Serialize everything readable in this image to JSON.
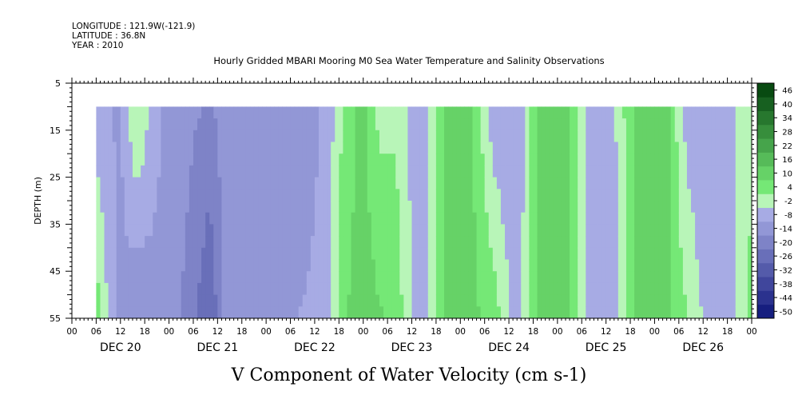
{
  "header": {
    "longitude": "LONGITUDE : 121.9W(-121.9)",
    "latitude": "LATITUDE : 36.8N",
    "year": "YEAR : 2010"
  },
  "colors": {
    "strong_negative": "#1e3ca8",
    "negative": "#8ea3f0",
    "near_zero": "#b6f2b6",
    "positive": "#3ee04f",
    "strong_positive": "#0a5a12",
    "background": "#ffffff"
  },
  "chart_data": {
    "type": "heatmap",
    "title": "Hourly Gridded MBARI Mooring M0 Sea Water Temperature and Salinity Observations",
    "xlabel": "",
    "ylabel": "DEPTH (m)",
    "caption": "V Component of Water Velocity (cm s-1)",
    "x_unit": "hours since Dec 20 2010 00:00",
    "xlim": [
      0,
      168
    ],
    "ylim": [
      5,
      55
    ],
    "y_inverted": true,
    "depth_data_range": [
      10,
      55
    ],
    "time_data_range": [
      6,
      168
    ],
    "ytick_values": [
      5,
      15,
      25,
      35,
      45,
      55
    ],
    "ytick_labels": [
      "5",
      "15",
      "25",
      "35",
      "45",
      "55"
    ],
    "hour_tick_labels": [
      "00",
      "06",
      "12",
      "18",
      "00",
      "06",
      "12",
      "18",
      "00",
      "06",
      "12",
      "18",
      "00",
      "06",
      "12",
      "18",
      "00",
      "06",
      "12",
      "18",
      "00",
      "06",
      "12",
      "18",
      "00",
      "06",
      "12",
      "18",
      "00"
    ],
    "day_labels": [
      "DEC 20",
      "DEC 21",
      "DEC 22",
      "DEC 23",
      "DEC 24",
      "DEC 25",
      "DEC 26"
    ],
    "colorbar": {
      "levels": [
        -50,
        -44,
        -38,
        -32,
        -26,
        -20,
        -14,
        -8,
        -2,
        4,
        10,
        16,
        22,
        28,
        34,
        40,
        46
      ],
      "labels": [
        "-50",
        "-44",
        "-38",
        "-32",
        "-26",
        "-20",
        "-14",
        "-8",
        "-2",
        "4",
        "10",
        "16",
        "22",
        "28",
        "34",
        "40",
        "46"
      ],
      "orientation": "vertical"
    },
    "v_velocity_shallow_10m": [
      {
        "t": 6,
        "v": -6
      },
      {
        "t": 12,
        "v": -9
      },
      {
        "t": 16,
        "v": 5
      },
      {
        "t": 22,
        "v": -8
      },
      {
        "t": 28,
        "v": -12
      },
      {
        "t": 34,
        "v": -15
      },
      {
        "t": 40,
        "v": -9
      },
      {
        "t": 46,
        "v": -8
      },
      {
        "t": 52,
        "v": -10
      },
      {
        "t": 58,
        "v": -12
      },
      {
        "t": 64,
        "v": -4
      },
      {
        "t": 68,
        "v": 8
      },
      {
        "t": 72,
        "v": 12
      },
      {
        "t": 76,
        "v": 2
      },
      {
        "t": 80,
        "v": 3
      },
      {
        "t": 86,
        "v": -8
      },
      {
        "t": 92,
        "v": 11
      },
      {
        "t": 98,
        "v": 14
      },
      {
        "t": 104,
        "v": -6
      },
      {
        "t": 110,
        "v": -8
      },
      {
        "t": 116,
        "v": 14
      },
      {
        "t": 122,
        "v": 15
      },
      {
        "t": 128,
        "v": -6
      },
      {
        "t": 134,
        "v": -3
      },
      {
        "t": 140,
        "v": 14
      },
      {
        "t": 146,
        "v": 15
      },
      {
        "t": 152,
        "v": -5
      },
      {
        "t": 158,
        "v": -8
      },
      {
        "t": 164,
        "v": -2
      },
      {
        "t": 168,
        "v": 3
      }
    ],
    "v_velocity_deep_50m": [
      {
        "t": 6,
        "v": 8
      },
      {
        "t": 10,
        "v": -6
      },
      {
        "t": 16,
        "v": -14
      },
      {
        "t": 22,
        "v": -10
      },
      {
        "t": 28,
        "v": -15
      },
      {
        "t": 34,
        "v": -26
      },
      {
        "t": 38,
        "v": -12
      },
      {
        "t": 44,
        "v": -14
      },
      {
        "t": 50,
        "v": -10
      },
      {
        "t": 56,
        "v": -8
      },
      {
        "t": 62,
        "v": -6
      },
      {
        "t": 68,
        "v": 10
      },
      {
        "t": 74,
        "v": 12
      },
      {
        "t": 80,
        "v": 8
      },
      {
        "t": 86,
        "v": -6
      },
      {
        "t": 92,
        "v": 10
      },
      {
        "t": 98,
        "v": 12
      },
      {
        "t": 104,
        "v": 8
      },
      {
        "t": 110,
        "v": -6
      },
      {
        "t": 116,
        "v": 12
      },
      {
        "t": 122,
        "v": 14
      },
      {
        "t": 128,
        "v": -4
      },
      {
        "t": 134,
        "v": -6
      },
      {
        "t": 140,
        "v": 12
      },
      {
        "t": 146,
        "v": 13
      },
      {
        "t": 152,
        "v": 4
      },
      {
        "t": 158,
        "v": -6
      },
      {
        "t": 164,
        "v": -2
      },
      {
        "t": 168,
        "v": 6
      }
    ]
  }
}
